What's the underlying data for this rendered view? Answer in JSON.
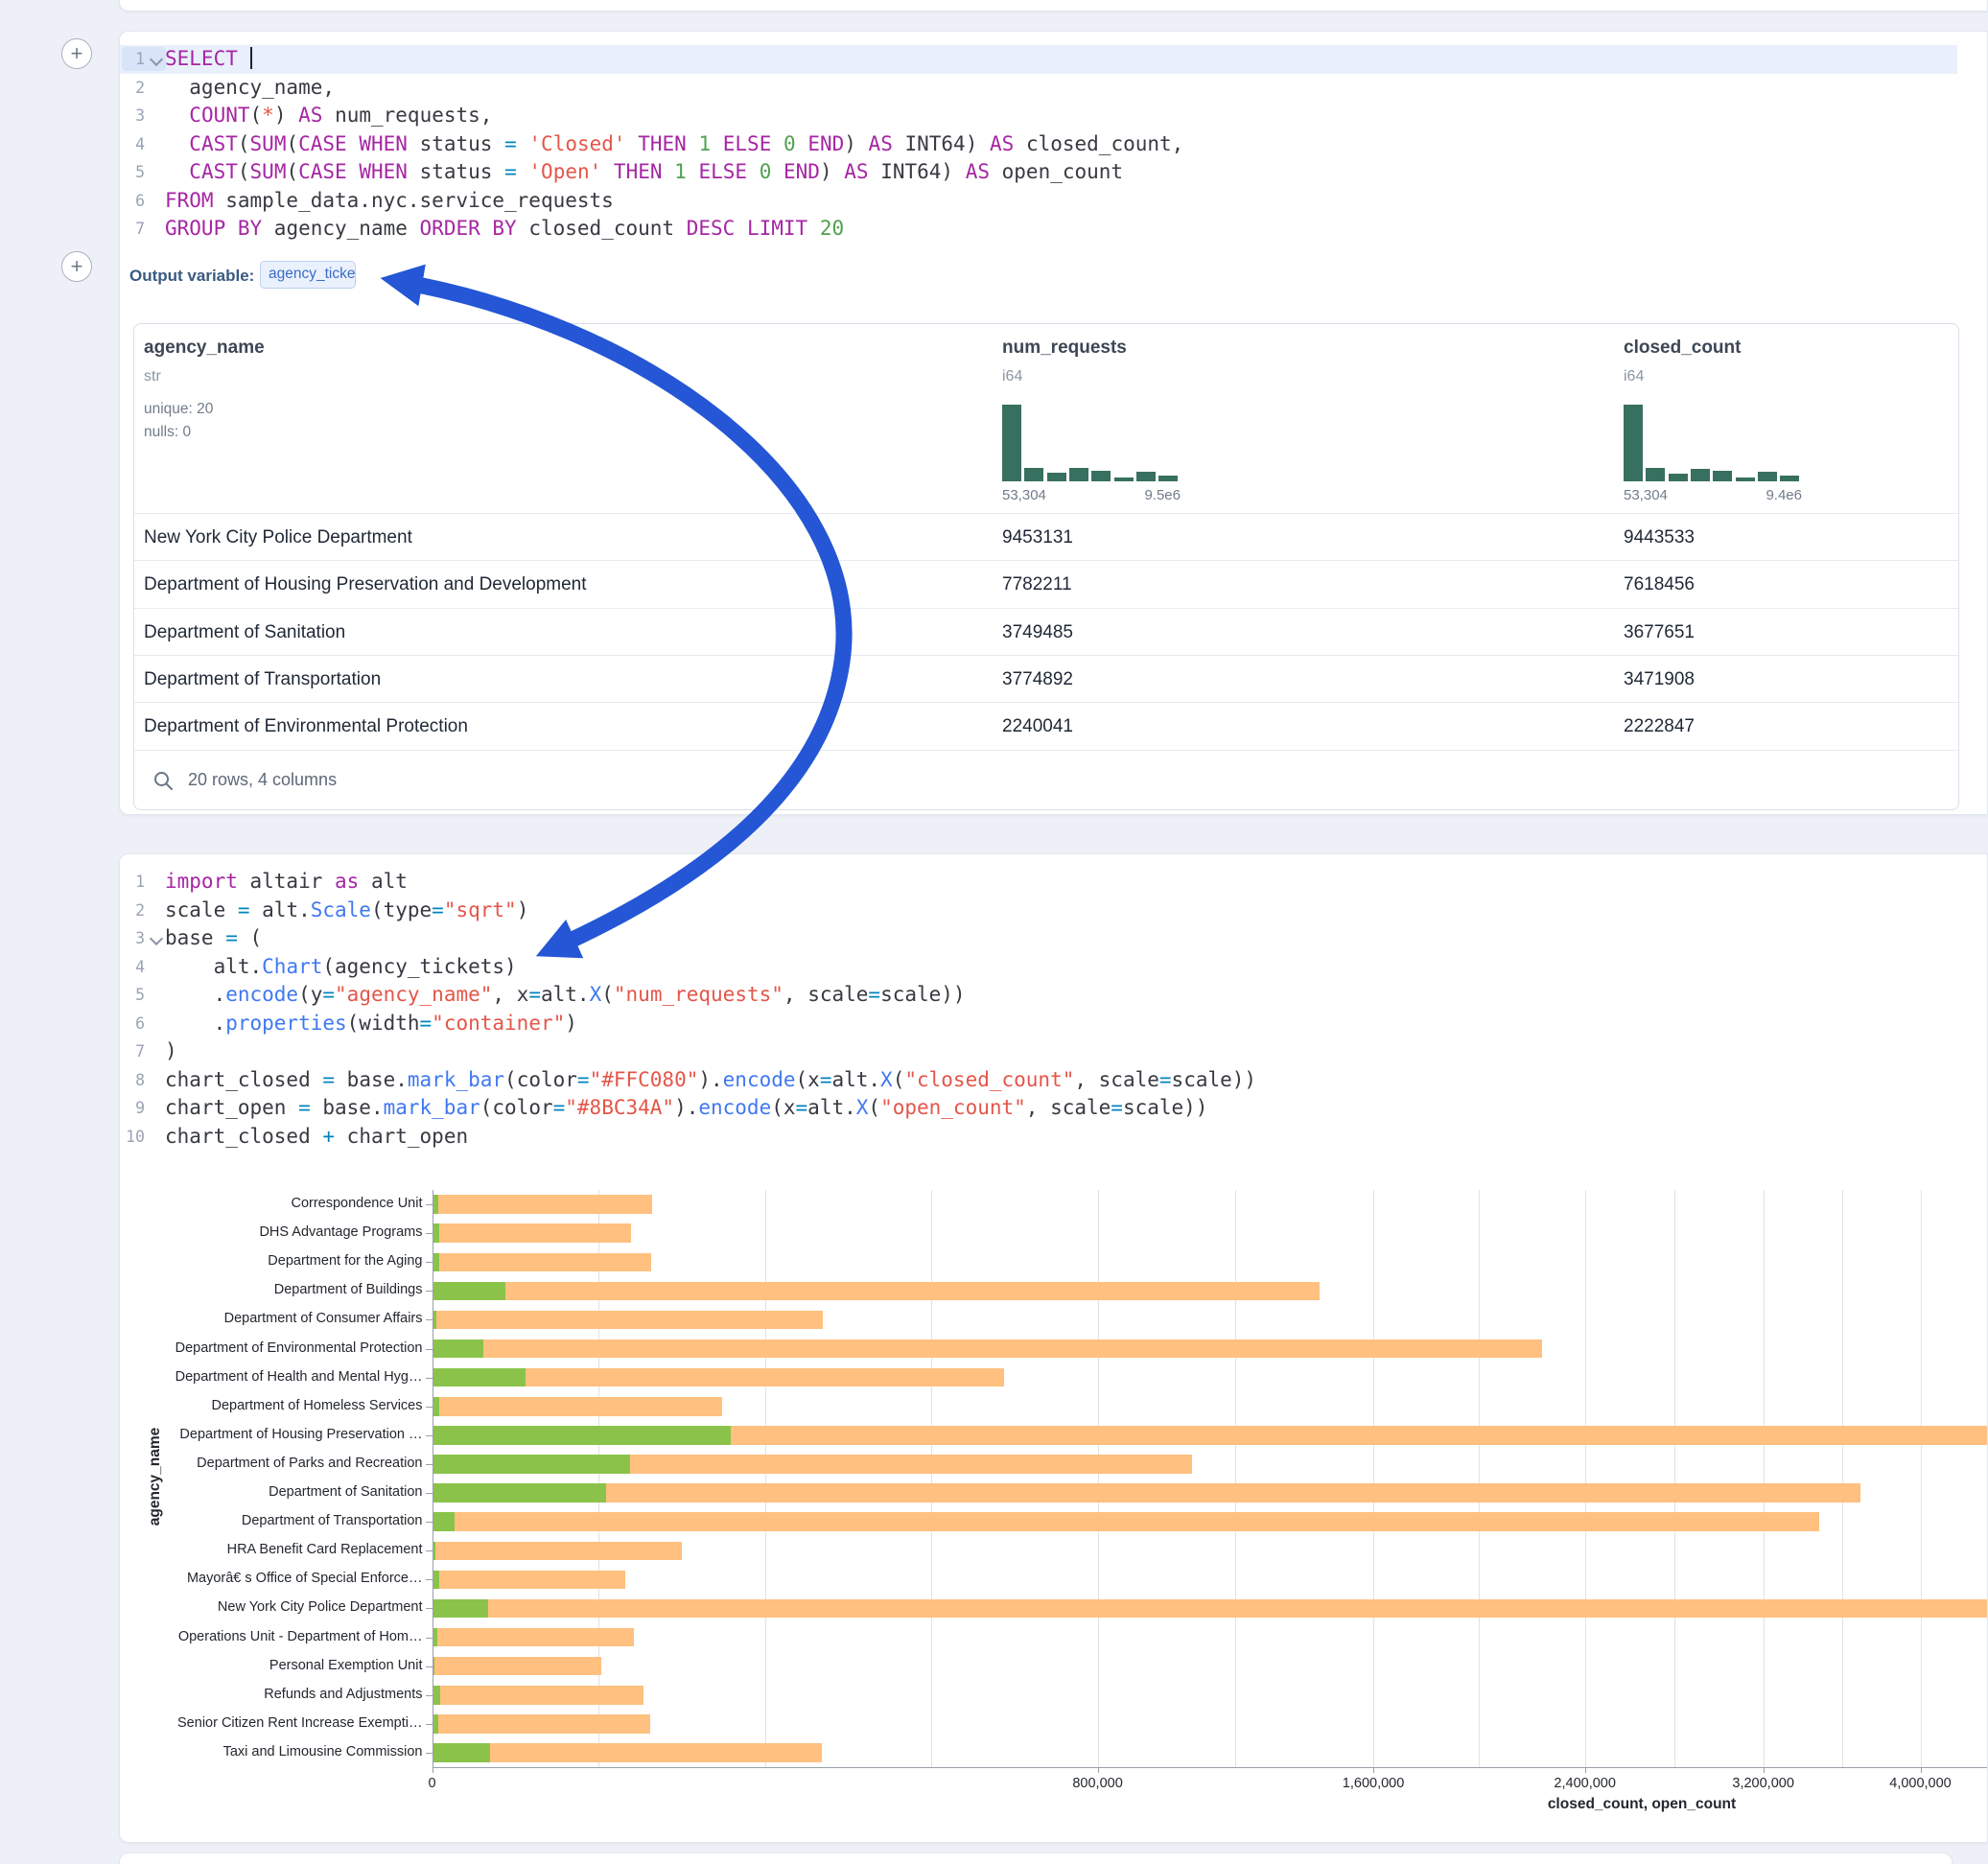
{
  "buttons": {
    "add_cell_label": "+"
  },
  "colors": {
    "arrow": "#2456d6",
    "histogram_bar": "#38705f",
    "bar_closed": "#FFC080",
    "bar_open": "#8BC34A"
  },
  "sql_cell": {
    "language": "sql",
    "output_variable_label": "Output variable:",
    "output_variable_value": "agency_tickets",
    "lines": [
      {
        "n": "1",
        "fold": true,
        "hl": true,
        "cursor_after": true,
        "tokens": [
          [
            "SELECT ",
            "k"
          ]
        ]
      },
      {
        "n": "2",
        "tokens": [
          [
            "  agency_name,",
            "d"
          ]
        ]
      },
      {
        "n": "3",
        "tokens": [
          [
            "  ",
            "d"
          ],
          [
            "COUNT",
            "k"
          ],
          [
            "(",
            "d"
          ],
          [
            "*",
            "s"
          ],
          [
            ") ",
            "d"
          ],
          [
            "AS",
            "k"
          ],
          [
            " num_requests,",
            "d"
          ]
        ]
      },
      {
        "n": "4",
        "tokens": [
          [
            "  ",
            "d"
          ],
          [
            "CAST",
            "k"
          ],
          [
            "(",
            "d"
          ],
          [
            "SUM",
            "k"
          ],
          [
            "(",
            "d"
          ],
          [
            "CASE",
            "k"
          ],
          [
            " ",
            "d"
          ],
          [
            "WHEN",
            "k"
          ],
          [
            " status ",
            "d"
          ],
          [
            "=",
            "o"
          ],
          [
            " ",
            "d"
          ],
          [
            "'Closed'",
            "s"
          ],
          [
            " ",
            "d"
          ],
          [
            "THEN",
            "k"
          ],
          [
            " ",
            "d"
          ],
          [
            "1",
            "n"
          ],
          [
            " ",
            "d"
          ],
          [
            "ELSE",
            "k"
          ],
          [
            " ",
            "d"
          ],
          [
            "0",
            "n"
          ],
          [
            " ",
            "d"
          ],
          [
            "END",
            "k"
          ],
          [
            ") ",
            "d"
          ],
          [
            "AS",
            "k"
          ],
          [
            " INT64) ",
            "d"
          ],
          [
            "AS",
            "k"
          ],
          [
            " closed_count,",
            "d"
          ]
        ]
      },
      {
        "n": "5",
        "tokens": [
          [
            "  ",
            "d"
          ],
          [
            "CAST",
            "k"
          ],
          [
            "(",
            "d"
          ],
          [
            "SUM",
            "k"
          ],
          [
            "(",
            "d"
          ],
          [
            "CASE",
            "k"
          ],
          [
            " ",
            "d"
          ],
          [
            "WHEN",
            "k"
          ],
          [
            " status ",
            "d"
          ],
          [
            "=",
            "o"
          ],
          [
            " ",
            "d"
          ],
          [
            "'Open'",
            "s"
          ],
          [
            " ",
            "d"
          ],
          [
            "THEN",
            "k"
          ],
          [
            " ",
            "d"
          ],
          [
            "1",
            "n"
          ],
          [
            " ",
            "d"
          ],
          [
            "ELSE",
            "k"
          ],
          [
            " ",
            "d"
          ],
          [
            "0",
            "n"
          ],
          [
            " ",
            "d"
          ],
          [
            "END",
            "k"
          ],
          [
            ") ",
            "d"
          ],
          [
            "AS",
            "k"
          ],
          [
            " INT64) ",
            "d"
          ],
          [
            "AS",
            "k"
          ],
          [
            " open_count",
            "d"
          ]
        ]
      },
      {
        "n": "6",
        "tokens": [
          [
            "FROM",
            "k"
          ],
          [
            " sample_data.nyc.service_requests",
            "d"
          ]
        ]
      },
      {
        "n": "7",
        "tokens": [
          [
            "GROUP BY",
            "k"
          ],
          [
            " agency_name ",
            "d"
          ],
          [
            "ORDER BY",
            "k"
          ],
          [
            " closed_count ",
            "d"
          ],
          [
            "DESC",
            "k"
          ],
          [
            " ",
            "d"
          ],
          [
            "LIMIT",
            "k"
          ],
          [
            " ",
            "d"
          ],
          [
            "20",
            "n"
          ]
        ]
      }
    ]
  },
  "result_table": {
    "columns": [
      {
        "name": "agency_name",
        "dtype": "str",
        "stats": [
          "unique: 20",
          "nulls: 0"
        ]
      },
      {
        "name": "num_requests",
        "dtype": "i64",
        "hist": [
          1,
          0.18,
          0.11,
          0.17,
          0.14,
          0.05,
          0.13,
          0.08
        ],
        "hist_min": "53,304",
        "hist_max": "9.5e6"
      },
      {
        "name": "closed_count",
        "dtype": "i64",
        "hist": [
          1,
          0.17,
          0.1,
          0.16,
          0.14,
          0.05,
          0.12,
          0.07
        ],
        "hist_min": "53,304",
        "hist_max": "9.4e6"
      }
    ],
    "rows": [
      [
        "New York City Police Department",
        "9453131",
        "9443533"
      ],
      [
        "Department of Housing Preservation and Development",
        "7782211",
        "7618456"
      ],
      [
        "Department of Sanitation",
        "3749485",
        "3677651"
      ],
      [
        "Department of Transportation",
        "3774892",
        "3471908"
      ],
      [
        "Department of Environmental Protection",
        "2240041",
        "2222847"
      ]
    ],
    "footer": "20 rows, 4 columns"
  },
  "python_cell": {
    "language": "python",
    "lines": [
      {
        "n": "1",
        "tokens": [
          [
            "import",
            "k"
          ],
          [
            " altair ",
            "d"
          ],
          [
            "as",
            "k"
          ],
          [
            " alt",
            "d"
          ]
        ]
      },
      {
        "n": "2",
        "tokens": [
          [
            "scale ",
            "d"
          ],
          [
            "=",
            "o"
          ],
          [
            " alt.",
            "d"
          ],
          [
            "Scale",
            "f"
          ],
          [
            "(type",
            "d"
          ],
          [
            "=",
            "o"
          ],
          [
            "\"sqrt\"",
            "s"
          ],
          [
            ")",
            "d"
          ]
        ]
      },
      {
        "n": "3",
        "fold": true,
        "tokens": [
          [
            "base ",
            "d"
          ],
          [
            "=",
            "o"
          ],
          [
            " (",
            "d"
          ]
        ]
      },
      {
        "n": "4",
        "tokens": [
          [
            "    alt.",
            "d"
          ],
          [
            "Chart",
            "f"
          ],
          [
            "(agency_tickets)",
            "d"
          ]
        ]
      },
      {
        "n": "5",
        "tokens": [
          [
            "    .",
            "d"
          ],
          [
            "encode",
            "f"
          ],
          [
            "(y",
            "d"
          ],
          [
            "=",
            "o"
          ],
          [
            "\"agency_name\"",
            "s"
          ],
          [
            ", x",
            "d"
          ],
          [
            "=",
            "o"
          ],
          [
            "alt.",
            "d"
          ],
          [
            "X",
            "f"
          ],
          [
            "(",
            "d"
          ],
          [
            "\"num_requests\"",
            "s"
          ],
          [
            ", scale",
            "d"
          ],
          [
            "=",
            "o"
          ],
          [
            "scale))",
            "d"
          ]
        ]
      },
      {
        "n": "6",
        "tokens": [
          [
            "    .",
            "d"
          ],
          [
            "properties",
            "f"
          ],
          [
            "(width",
            "d"
          ],
          [
            "=",
            "o"
          ],
          [
            "\"container\"",
            "s"
          ],
          [
            ")",
            "d"
          ]
        ]
      },
      {
        "n": "7",
        "tokens": [
          [
            ")",
            "d"
          ]
        ]
      },
      {
        "n": "8",
        "tokens": [
          [
            "chart_closed ",
            "d"
          ],
          [
            "=",
            "o"
          ],
          [
            " base.",
            "d"
          ],
          [
            "mark_bar",
            "f"
          ],
          [
            "(color",
            "d"
          ],
          [
            "=",
            "o"
          ],
          [
            "\"#FFC080\"",
            "s"
          ],
          [
            ").",
            "d"
          ],
          [
            "encode",
            "f"
          ],
          [
            "(x",
            "d"
          ],
          [
            "=",
            "o"
          ],
          [
            "alt.",
            "d"
          ],
          [
            "X",
            "f"
          ],
          [
            "(",
            "d"
          ],
          [
            "\"closed_count\"",
            "s"
          ],
          [
            ", scale",
            "d"
          ],
          [
            "=",
            "o"
          ],
          [
            "scale))",
            "d"
          ]
        ]
      },
      {
        "n": "9",
        "tokens": [
          [
            "chart_open ",
            "d"
          ],
          [
            "=",
            "o"
          ],
          [
            " base.",
            "d"
          ],
          [
            "mark_bar",
            "f"
          ],
          [
            "(color",
            "d"
          ],
          [
            "=",
            "o"
          ],
          [
            "\"#8BC34A\"",
            "s"
          ],
          [
            ").",
            "d"
          ],
          [
            "encode",
            "f"
          ],
          [
            "(x",
            "d"
          ],
          [
            "=",
            "o"
          ],
          [
            "alt.",
            "d"
          ],
          [
            "X",
            "f"
          ],
          [
            "(",
            "d"
          ],
          [
            "\"open_count\"",
            "s"
          ],
          [
            ", scale",
            "d"
          ],
          [
            "=",
            "o"
          ],
          [
            "scale))",
            "d"
          ]
        ]
      },
      {
        "n": "10",
        "tokens": [
          [
            "chart_closed ",
            "d"
          ],
          [
            "+",
            "o"
          ],
          [
            " chart_open",
            "d"
          ]
        ]
      }
    ]
  },
  "chart_data": {
    "type": "bar",
    "orientation": "horizontal",
    "x_scale": "sqrt",
    "xlabel": "closed_count, open_count",
    "ylabel": "agency_name",
    "legend": "none",
    "grid": true,
    "x_ticks": [
      0,
      800000,
      1600000,
      2400000,
      3200000,
      4000000
    ],
    "x_tick_labels": [
      "0",
      "800,000",
      "1,600,000",
      "2,400,000",
      "3,200,000",
      "4,000,000"
    ],
    "categories": [
      "Correspondence Unit",
      "DHS Advantage Programs",
      "Department for the Aging",
      "Department of Buildings",
      "Department of Consumer Affairs",
      "Department of Environmental Protection",
      "Department of Health and Mental Hyg…",
      "Department of Homeless Services",
      "Department of Housing Preservation …",
      "Department of Parks and Recreation",
      "Department of Sanitation",
      "Department of Transportation",
      "HRA Benefit Card Replacement",
      "Mayorâ€ s Office of Special Enforce…",
      "New York City Police Department",
      "Operations Unit - Department of Hom…",
      "Personal Exemption Unit",
      "Refunds and Adjustments",
      "Senior Citizen Rent Increase Exempti…",
      "Taxi and Limousine Commission"
    ],
    "series": [
      {
        "name": "closed_count",
        "color": "#FFC080",
        "values": [
          87000,
          71000,
          86000,
          1420000,
          274000,
          2222847,
          588000,
          151000,
          7618456,
          1040000,
          3677651,
          3471908,
          112000,
          67000,
          9443533,
          73000,
          51000,
          80000,
          85000,
          273000
        ]
      },
      {
        "name": "open_count",
        "color": "#8BC34A",
        "values": [
          50,
          70,
          60,
          9400,
          20,
          4600,
          15500,
          60,
          160000,
          70000,
          54000,
          850,
          10,
          60,
          5400,
          40,
          5,
          100,
          50,
          5900
        ]
      }
    ]
  }
}
